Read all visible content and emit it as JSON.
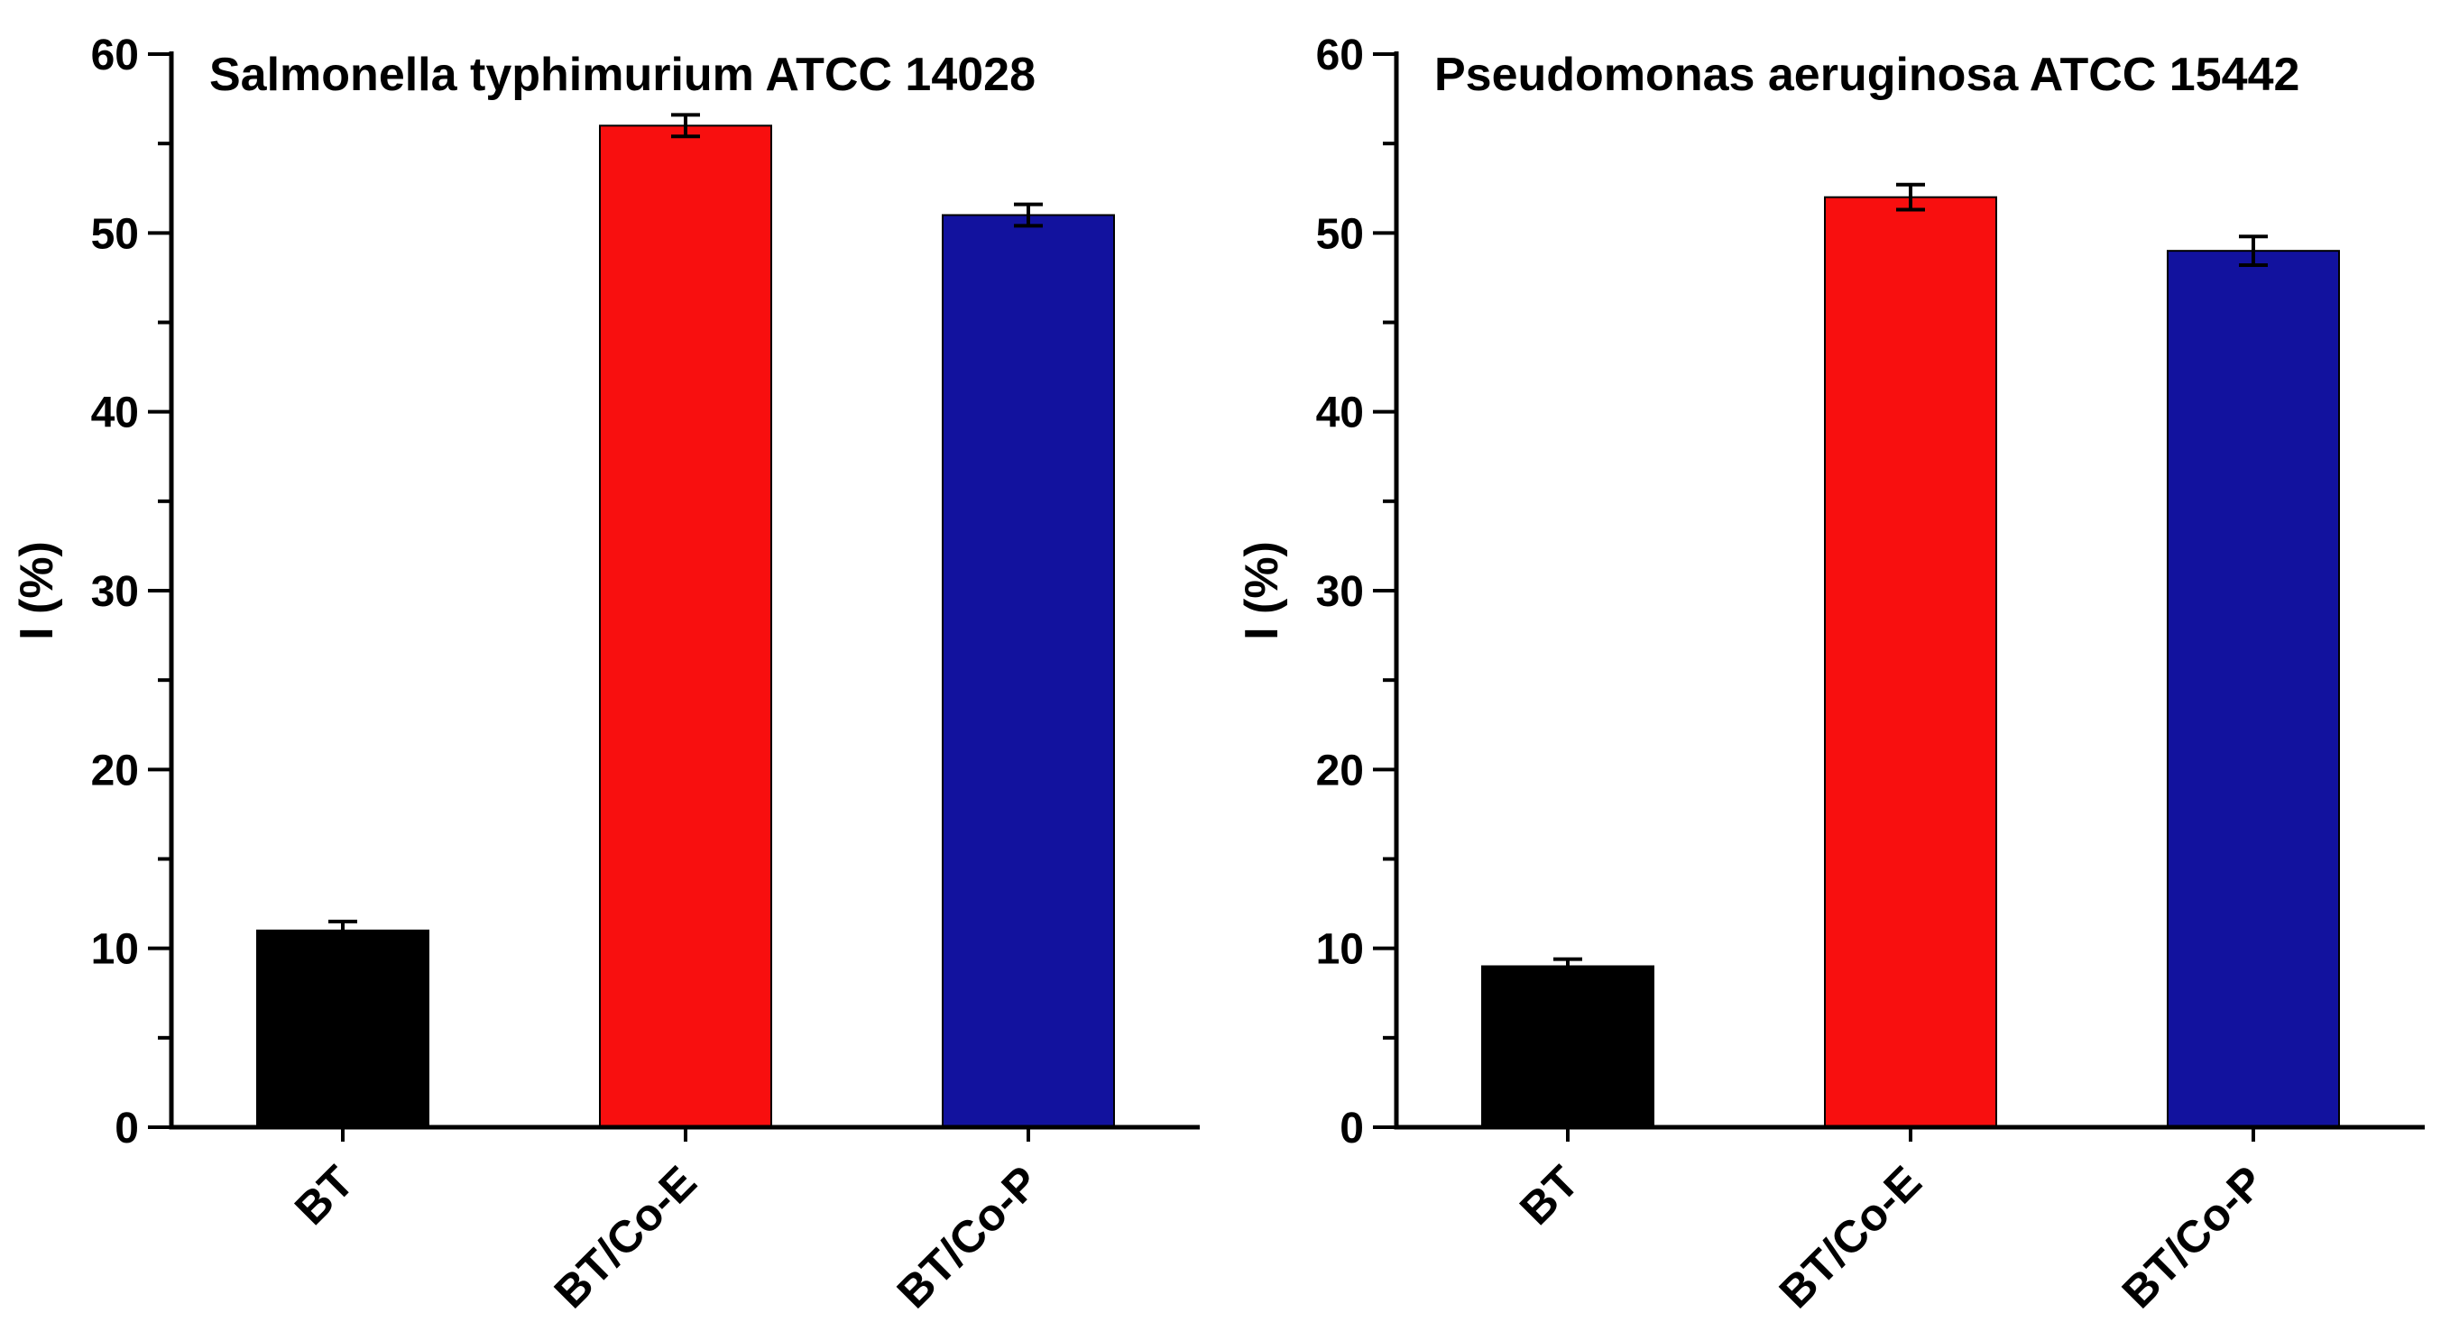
{
  "figure": {
    "background": "#ffffff",
    "panel_count": 2,
    "axis_color": "#000000"
  },
  "chart_data": [
    {
      "type": "bar",
      "title": "Salmonella typhimurium ATCC 14028",
      "xlabel": "",
      "ylabel": "I (%)",
      "ylim": [
        0,
        60
      ],
      "ytick_step": 10,
      "yminor_step": 5,
      "grid": false,
      "legend": "none",
      "categories": [
        "BT",
        "BT/Co-E",
        "BT/Co-P"
      ],
      "values": [
        11,
        56,
        51
      ],
      "errors": [
        0.5,
        0.6,
        0.6
      ],
      "bar_colors": [
        "#000000",
        "#f80f0f",
        "#12129e"
      ],
      "bar_edge_color": "#000000",
      "error_color": "#000000"
    },
    {
      "type": "bar",
      "title": "Pseudomonas aeruginosa ATCC 15442",
      "xlabel": "",
      "ylabel": "I (%)",
      "ylim": [
        0,
        60
      ],
      "ytick_step": 10,
      "yminor_step": 5,
      "grid": false,
      "legend": "none",
      "categories": [
        "BT",
        "BT/Co-E",
        "BT/Co-P"
      ],
      "values": [
        9,
        52,
        49
      ],
      "errors": [
        0.4,
        0.7,
        0.8
      ],
      "bar_colors": [
        "#000000",
        "#f80f0f",
        "#12129e"
      ],
      "bar_edge_color": "#000000",
      "error_color": "#000000"
    }
  ]
}
